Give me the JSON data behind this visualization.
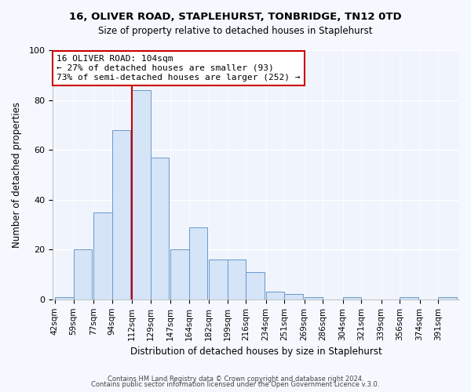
{
  "title": "16, OLIVER ROAD, STAPLEHURST, TONBRIDGE, TN12 0TD",
  "subtitle": "Size of property relative to detached houses in Staplehurst",
  "xlabel": "Distribution of detached houses by size in Staplehurst",
  "ylabel": "Number of detached properties",
  "bin_labels": [
    "42sqm",
    "59sqm",
    "77sqm",
    "94sqm",
    "112sqm",
    "129sqm",
    "147sqm",
    "164sqm",
    "182sqm",
    "199sqm",
    "216sqm",
    "234sqm",
    "251sqm",
    "269sqm",
    "286sqm",
    "304sqm",
    "321sqm",
    "339sqm",
    "356sqm",
    "374sqm",
    "391sqm"
  ],
  "bar_heights": [
    1,
    20,
    35,
    68,
    84,
    57,
    20,
    29,
    16,
    16,
    11,
    3,
    2,
    1,
    0,
    1,
    0,
    0,
    1,
    0,
    1
  ],
  "bar_color": "#d6e4f7",
  "bar_edge_color": "#6699cc",
  "vline_x_idx": 4,
  "vline_color": "#cc0000",
  "ylim": [
    0,
    100
  ],
  "yticks": [
    0,
    20,
    40,
    60,
    80,
    100
  ],
  "annotation_title": "16 OLIVER ROAD: 104sqm",
  "annotation_line2": "← 27% of detached houses are smaller (93)",
  "annotation_line3": "73% of semi-detached houses are larger (252) →",
  "annotation_box_color": "#ffffff",
  "annotation_border_color": "#cc0000",
  "footer_line1": "Contains HM Land Registry data © Crown copyright and database right 2024.",
  "footer_line2": "Contains public sector information licensed under the Open Government Licence v.3.0.",
  "fig_bg_color": "#f5f8ff",
  "plot_bg_color": "#f0f4fc"
}
